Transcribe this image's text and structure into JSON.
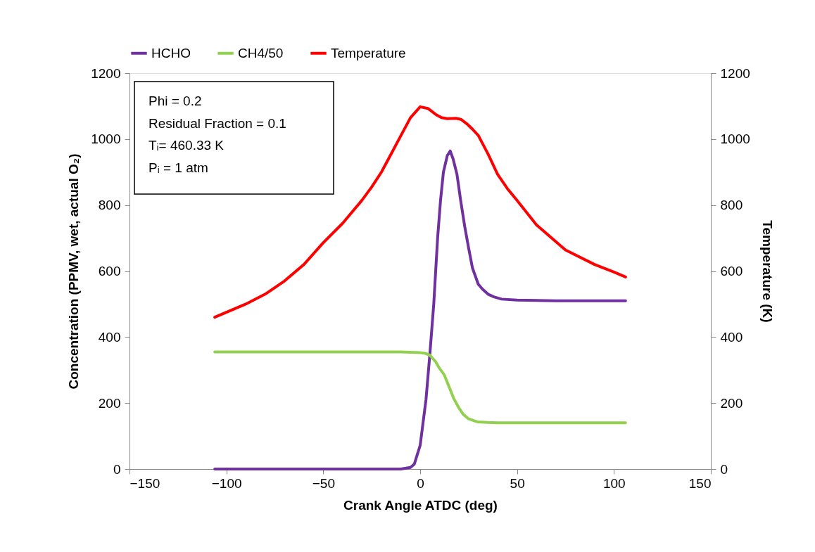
{
  "chart_data": {
    "type": "line",
    "xlabel": "Crank Angle ATDC (deg)",
    "ylabel": "Concentration (PPMV, wet, actual O₂)",
    "y2label": "Temperature (K)",
    "xlim": [
      -150,
      150
    ],
    "xticks": [
      -150,
      -100,
      -50,
      0,
      50,
      100,
      150
    ],
    "ylim": [
      0,
      1200
    ],
    "yticks": [
      0,
      200,
      400,
      600,
      800,
      1000,
      1200
    ],
    "y2lim": [
      0,
      1200
    ],
    "y2ticks": [
      0,
      200,
      400,
      600,
      800,
      1000,
      1200
    ],
    "grid": false,
    "legend": "top",
    "marker": "none",
    "line_style": "solid",
    "annotations": [
      "Phi = 0.2",
      "Residual Fraction = 0.1",
      "Tᵢ= 460.33 K",
      "Pᵢ = 1 atm"
    ],
    "series": [
      {
        "name": "HCHO",
        "color": "#7030a0",
        "x": [
          -106,
          -50,
          -10,
          -5,
          -3,
          0,
          3,
          5,
          7,
          9,
          10.5,
          12,
          14,
          15.5,
          17,
          19,
          21,
          23,
          25,
          27,
          30,
          32,
          35,
          38,
          42,
          50,
          70,
          106
        ],
        "values": [
          0,
          0,
          0,
          5,
          15,
          72,
          210,
          348,
          499,
          700,
          814,
          900,
          950,
          964,
          940,
          893,
          810,
          735,
          670,
          609,
          560,
          546,
          530,
          522,
          515,
          512,
          510,
          510
        ]
      },
      {
        "name": "CH4/50",
        "color": "#92d050",
        "x": [
          -106,
          -50,
          -10,
          0,
          3,
          5,
          8,
          10,
          12.4,
          15,
          17.3,
          20,
          22.2,
          25,
          29.5,
          35,
          40,
          60,
          106
        ],
        "values": [
          355,
          355,
          355,
          353,
          350,
          345,
          325,
          305,
          286,
          248,
          214,
          185,
          166,
          152,
          143,
          141,
          140,
          140,
          140
        ]
      },
      {
        "name": "Temperature",
        "color": "#ff0000",
        "axis": "y2",
        "x": [
          -106,
          -90,
          -80,
          -70,
          -60,
          -50,
          -40,
          -30,
          -25,
          -20,
          -15,
          -10,
          -5,
          0,
          4,
          8,
          11,
          14,
          18.5,
          21,
          24,
          27,
          30,
          35,
          40,
          45,
          50,
          60,
          75,
          90,
          100,
          106
        ],
        "values": [
          460,
          500,
          530,
          570,
          620,
          686,
          745,
          815,
          855,
          900,
          955,
          1010,
          1065,
          1098,
          1093,
          1075,
          1065,
          1062,
          1063,
          1060,
          1047,
          1030,
          1011,
          955,
          893,
          850,
          814,
          740,
          664,
          620,
          597,
          582
        ]
      }
    ]
  }
}
